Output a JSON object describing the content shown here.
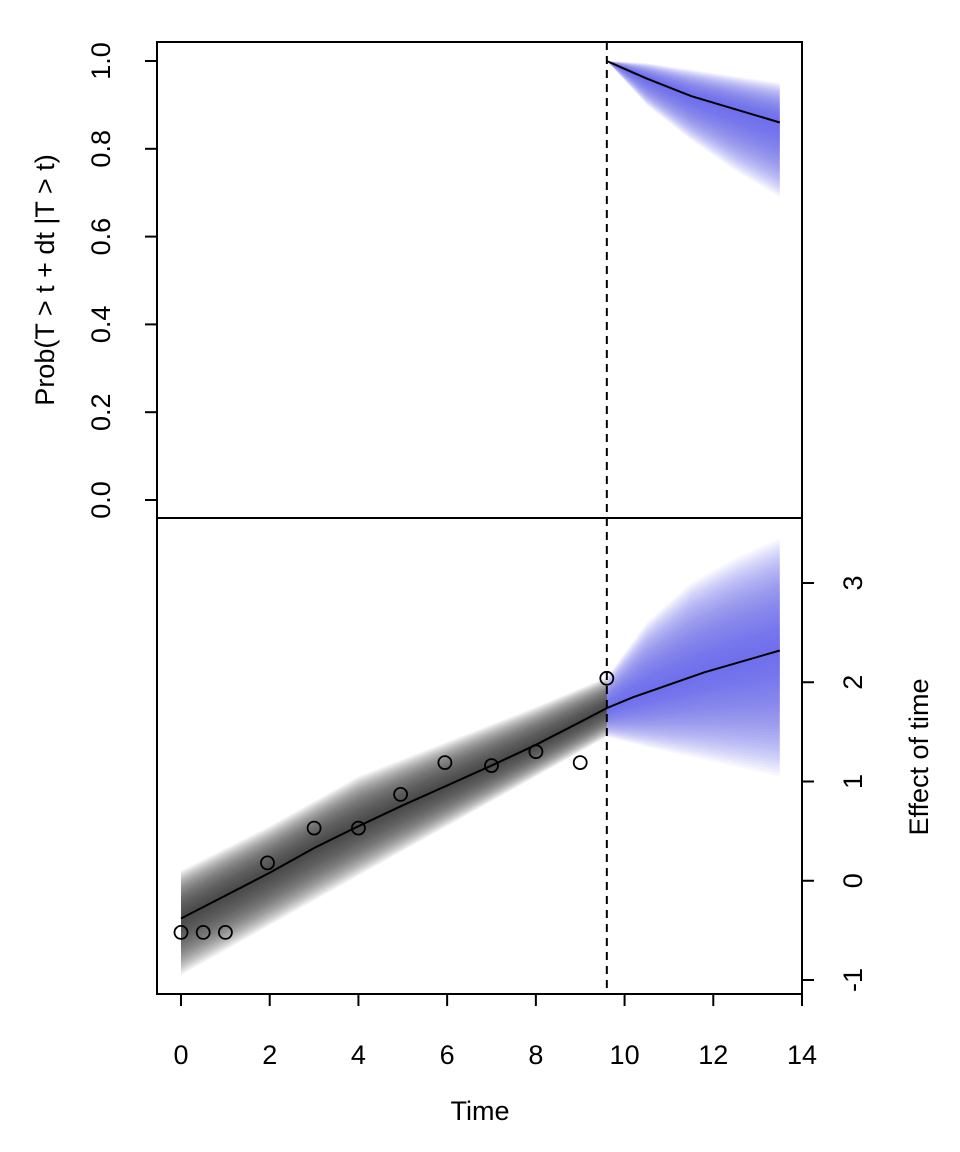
{
  "chart_data": [
    {
      "type": "area",
      "panel": "top",
      "ylabel": "Prob(T > t + dt |T > t)",
      "ylim": [
        0,
        1
      ],
      "yticks": [
        "0.0",
        "0.2",
        "0.4",
        "0.6",
        "0.8",
        "1.0"
      ],
      "grid": false,
      "band_color": "#5c5cf5",
      "series": [
        {
          "x": [
            9.6,
            10.5,
            11.5,
            12.5,
            13.5
          ],
          "y": [
            1.0,
            0.96,
            0.92,
            0.89,
            0.86
          ]
        }
      ],
      "band_lower": [
        1.0,
        0.9,
        0.82,
        0.75,
        0.69
      ],
      "band_upper": [
        1.0,
        0.995,
        0.98,
        0.965,
        0.95
      ]
    },
    {
      "type": "scatter",
      "panel": "bottom",
      "xlabel": "Time",
      "ylabel": "Effect of time",
      "xlim": [
        0,
        14
      ],
      "ylim": [
        -1,
        3
      ],
      "xticks": [
        "0",
        "2",
        "4",
        "6",
        "8",
        "10",
        "12",
        "14"
      ],
      "yticks": [
        "-1",
        "0",
        "1",
        "2",
        "3"
      ],
      "grid": false,
      "points": {
        "x": [
          0,
          0.5,
          1,
          1.95,
          3,
          4,
          4.95,
          5.95,
          7,
          8,
          9,
          9.6
        ],
        "y": [
          -0.52,
          -0.52,
          -0.52,
          0.18,
          0.53,
          0.53,
          0.87,
          1.19,
          1.16,
          1.3,
          1.19,
          2.04
        ]
      },
      "fitted_line": {
        "x": [
          0,
          1,
          2,
          3,
          4,
          5,
          6,
          7,
          8,
          9,
          9.6,
          10.2,
          11.8,
          13.5
        ],
        "y": [
          -0.38,
          -0.15,
          0.08,
          0.33,
          0.55,
          0.76,
          0.96,
          1.16,
          1.37,
          1.6,
          1.74,
          1.85,
          2.1,
          2.32
        ]
      },
      "observed_band": {
        "x": [
          0,
          2,
          4,
          6,
          8,
          9.6
        ],
        "lower": [
          -0.95,
          -0.45,
          0.05,
          0.55,
          1.05,
          1.45
        ],
        "upper": [
          0.1,
          0.55,
          1.05,
          1.4,
          1.75,
          2.05
        ],
        "color": "#333333"
      },
      "prediction_band": {
        "x": [
          9.6,
          10.5,
          11.5,
          12.5,
          13.5
        ],
        "lower": [
          1.45,
          1.35,
          1.25,
          1.15,
          1.05
        ],
        "upper": [
          2.05,
          2.6,
          3.0,
          3.25,
          3.45
        ],
        "color": "#5c5cf5"
      },
      "cutoff_time": 9.6
    }
  ]
}
